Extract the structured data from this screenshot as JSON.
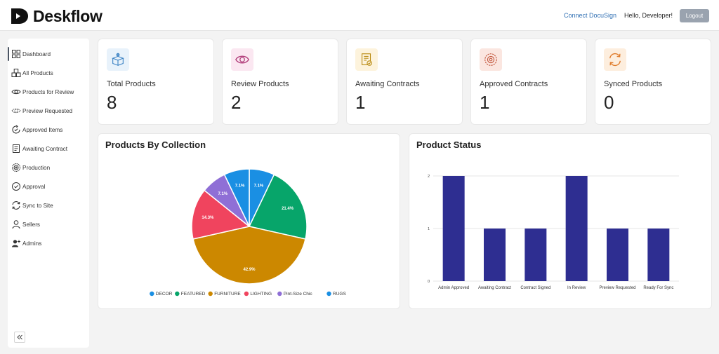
{
  "brand": {
    "name": "Deskflow"
  },
  "header": {
    "connect_label": "Connect DocuSign",
    "greeting": "Hello, Developer!",
    "logout_label": "Logout"
  },
  "sidebar": {
    "items": [
      {
        "label": "Dashboard",
        "icon": "grid-icon",
        "active": true
      },
      {
        "label": "All Products",
        "icon": "boxes-icon"
      },
      {
        "label": "Products for Review",
        "icon": "eye-icon"
      },
      {
        "label": "Preview Requested",
        "icon": "eye-dashed-icon"
      },
      {
        "label": "Approved Items",
        "icon": "refresh-check-icon"
      },
      {
        "label": "Awaiting Contract",
        "icon": "document-icon"
      },
      {
        "label": "Production",
        "icon": "settings-icon"
      },
      {
        "label": "Approval",
        "icon": "check-circle-icon"
      },
      {
        "label": "Sync to Site",
        "icon": "sync-icon"
      },
      {
        "label": "Sellers",
        "icon": "user-icon"
      },
      {
        "label": "Admins",
        "icon": "users-icon"
      }
    ],
    "collapse_icon": "double-chevron-left-icon"
  },
  "stats": [
    {
      "title": "Total Products",
      "value": "8",
      "icon": "box-icon",
      "color": "#3b82c4",
      "bg": "#e8f2fb"
    },
    {
      "title": "Review Products",
      "value": "2",
      "icon": "eye-icon",
      "color": "#b03a78",
      "bg": "#fbe7f1"
    },
    {
      "title": "Awaiting Contracts",
      "value": "1",
      "icon": "contract-icon",
      "color": "#b8890f",
      "bg": "#fdf3dc"
    },
    {
      "title": "Approved Contracts",
      "value": "1",
      "icon": "gear-icon",
      "color": "#c2543a",
      "bg": "#fbe6e0"
    },
    {
      "title": "Synced Products",
      "value": "0",
      "icon": "sync-icon",
      "color": "#e07b2a",
      "bg": "#fdeede"
    }
  ],
  "collection_chart": {
    "title": "Products By Collection",
    "chart_data": {
      "type": "pie",
      "title": "Products By Collection",
      "slices": [
        {
          "name": "DECOR",
          "value": 7.1,
          "label": "7.1%",
          "color": "#1a8fe3"
        },
        {
          "name": "FEATURED",
          "value": 21.4,
          "label": "21.4%",
          "color": "#07a56a"
        },
        {
          "name": "FURNITURE",
          "value": 42.9,
          "label": "42.9%",
          "color": "#cc8800"
        },
        {
          "name": "LIGHTING",
          "value": 14.3,
          "label": "14.3%",
          "color": "#f0445e"
        },
        {
          "name": "Pint-Size Chic",
          "value": 7.1,
          "label": "7.1%",
          "color": "#8f6fd6"
        },
        {
          "name": "RUGS",
          "value": 7.1,
          "label": "7.1%",
          "color": "#1a8fe3"
        }
      ],
      "legend_position": "bottom"
    }
  },
  "status_chart": {
    "title": "Product Status",
    "chart_data": {
      "type": "bar",
      "title": "Product Status",
      "categories": [
        "Admin Approved",
        "Awaiting Contract",
        "Contract Signed",
        "In Review",
        "Preview Requested",
        "Ready For Sync"
      ],
      "values": [
        2,
        1,
        1,
        2,
        1,
        1
      ],
      "ylim": [
        0,
        2
      ],
      "yticks": [
        "0",
        "1",
        "2"
      ],
      "bar_color": "#2e2e91",
      "grid": true
    }
  }
}
